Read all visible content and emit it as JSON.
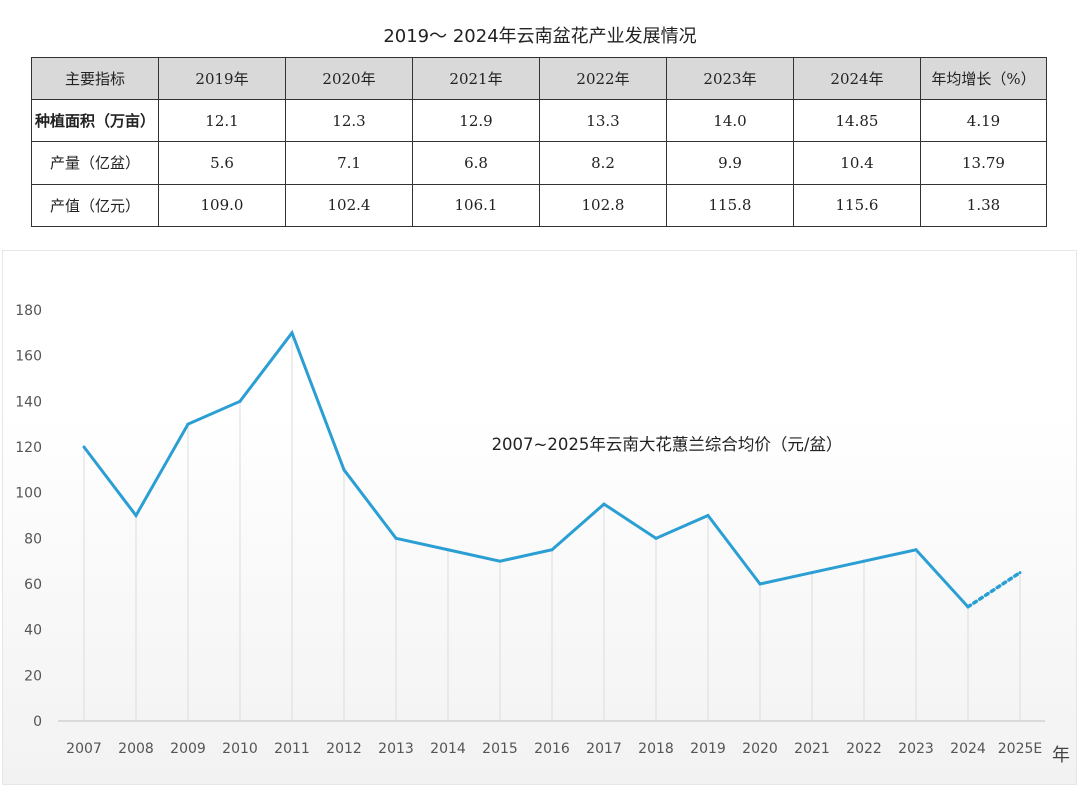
{
  "table": {
    "title": "2019～ 2024年云南盆花产业发展情况",
    "headers": [
      "主要指标",
      "2019年",
      "2020年",
      "2021年",
      "2022年",
      "2023年",
      "2024年",
      "年均增长（%）"
    ],
    "rows": [
      {
        "label": "种植面积（万亩）",
        "cells": [
          "12.1",
          "12.3",
          "12.9",
          "13.3",
          "14.0",
          "14.85",
          "4.19"
        ]
      },
      {
        "label": "产量（亿盆）",
        "cells": [
          "5.6",
          "7.1",
          "6.8",
          "8.2",
          "9.9",
          "10.4",
          "13.79"
        ]
      },
      {
        "label": "产值（亿元）",
        "cells": [
          "109.0",
          "102.4",
          "106.1",
          "102.8",
          "115.8",
          "115.6",
          "1.38"
        ]
      }
    ]
  },
  "chart_data": {
    "type": "line",
    "title": "2007~2025年云南大花蕙兰综合均价（元/盆）",
    "xlabel": "年",
    "ylabel": "",
    "x": [
      "2007",
      "2008",
      "2009",
      "2010",
      "2011",
      "2012",
      "2013",
      "2014",
      "2015",
      "2016",
      "2017",
      "2018",
      "2019",
      "2020",
      "2021",
      "2022",
      "2023",
      "2024",
      "2025E"
    ],
    "values": [
      120,
      90,
      130,
      140,
      170,
      110,
      80,
      75,
      70,
      75,
      95,
      80,
      90,
      60,
      65,
      70,
      75,
      50,
      65
    ],
    "estimated_from_index": 17,
    "ylim": [
      0,
      180
    ],
    "yticks": [
      0,
      20,
      40,
      60,
      80,
      100,
      120,
      140,
      160,
      180
    ],
    "grid": "vertical",
    "legend": "none",
    "line_color": "#2b9fd3"
  }
}
